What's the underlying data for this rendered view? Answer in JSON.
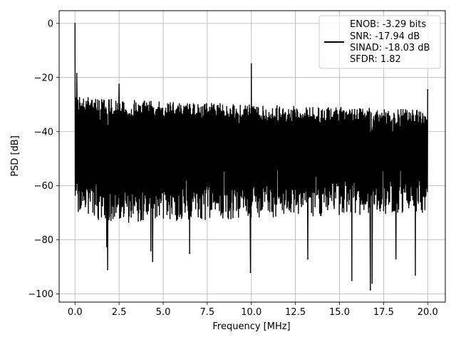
{
  "chart_data": {
    "type": "line",
    "title": "",
    "xlabel": "Frequency [MHz]",
    "ylabel": "PSD [dB]",
    "xlim": [
      -0.9,
      21.0
    ],
    "ylim": [
      -103,
      4.7
    ],
    "xticks": [
      0.0,
      2.5,
      5.0,
      7.5,
      10.0,
      12.5,
      15.0,
      17.5,
      20.0
    ],
    "xtick_labels": [
      "0.0",
      "2.5",
      "5.0",
      "7.5",
      "10.0",
      "12.5",
      "15.0",
      "17.5",
      "20.0"
    ],
    "yticks": [
      0,
      -20,
      -40,
      -60,
      -80,
      -100
    ],
    "ytick_labels": [
      "0",
      "−20",
      "−40",
      "−60",
      "−80",
      "−100"
    ],
    "grid": true,
    "legend_position": "top-right",
    "legend": {
      "lines": [
        "ENOB: -3.29 bits",
        "SNR: -17.94 dB",
        "SINAD: -18.03 dB",
        "SFDR: 1.82"
      ]
    },
    "series": [
      {
        "color": "#000000",
        "frequency_range_mhz": [
          0.0,
          20.0
        ],
        "noise_floor_envelope": {
          "x": [
            0.0,
            2.0,
            5.0,
            10.0,
            15.0,
            20.0
          ],
          "upper": [
            -27,
            -28,
            -29,
            -30,
            -31,
            -32
          ],
          "lower": [
            -70,
            -74,
            -73,
            -72,
            -71,
            -70
          ]
        },
        "peaks": [
          {
            "x": 0.0,
            "y": 0.0
          },
          {
            "x": 0.1,
            "y": -18.5
          },
          {
            "x": 2.5,
            "y": -22.5
          },
          {
            "x": 10.0,
            "y": -15.0
          },
          {
            "x": 20.0,
            "y": -24.5
          }
        ],
        "dips": [
          {
            "x": 1.8,
            "y": -82.5
          },
          {
            "x": 1.85,
            "y": -91.0
          },
          {
            "x": 4.3,
            "y": -84.0
          },
          {
            "x": 4.4,
            "y": -88.0
          },
          {
            "x": 6.5,
            "y": -85.0
          },
          {
            "x": 9.95,
            "y": -92.0
          },
          {
            "x": 13.2,
            "y": -87.0
          },
          {
            "x": 15.7,
            "y": -95.0
          },
          {
            "x": 16.75,
            "y": -98.5
          },
          {
            "x": 16.85,
            "y": -96.0
          },
          {
            "x": 18.2,
            "y": -87.0
          },
          {
            "x": 19.3,
            "y": -93.0
          }
        ]
      }
    ]
  }
}
